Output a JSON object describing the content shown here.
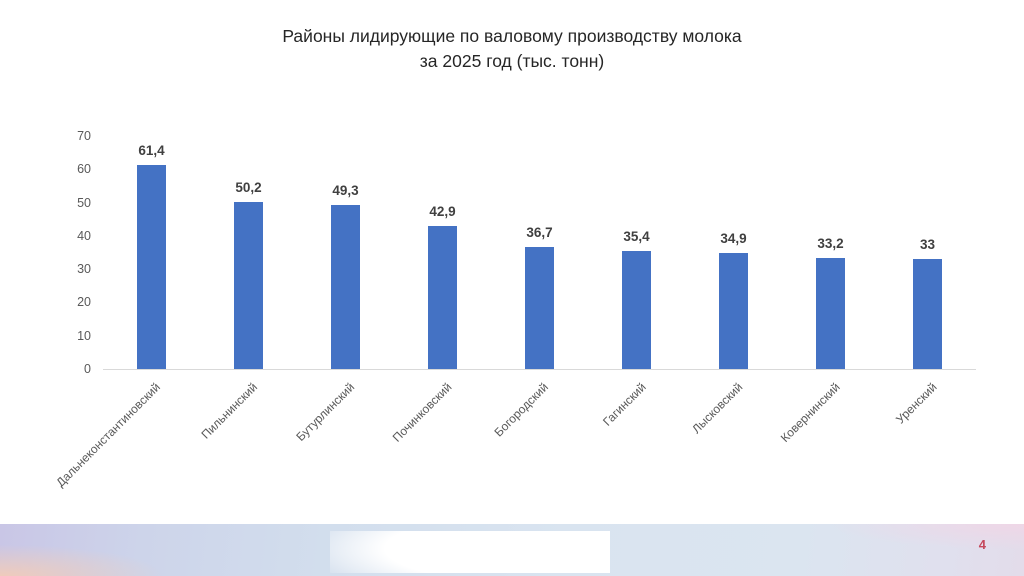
{
  "title": {
    "line1": "Районы лидирующие по валовому производству молока",
    "line2": "за 2025 год (тыс. тонн)"
  },
  "page_number": "4",
  "colors": {
    "bar": "#4472C4",
    "data_label": "#404040",
    "axis_label": "#595959",
    "page_number": "#C5485C"
  },
  "chart_data": {
    "type": "bar",
    "title": "Районы лидирующие по валовому производству молока за 2025 год (тыс. тонн)",
    "categories": [
      "Дальнеконстантиновский",
      "Пильнинский",
      "Бутурлинский",
      "Починковский",
      "Богородский",
      "Гагинский",
      "Лысковский",
      "Ковернинский",
      "Уренский"
    ],
    "values": [
      61.4,
      50.2,
      49.3,
      42.9,
      36.7,
      35.4,
      34.9,
      33.2,
      33
    ],
    "value_labels": [
      "61,4",
      "50,2",
      "49,3",
      "42,9",
      "36,7",
      "35,4",
      "34,9",
      "33,2",
      "33"
    ],
    "xlabel": "",
    "ylabel": "",
    "ylim": [
      0,
      70
    ],
    "yticks": [
      0,
      10,
      20,
      30,
      40,
      50,
      60,
      70
    ],
    "grid": false,
    "legend": false,
    "bar_color": "#4472C4",
    "data_labels_shown": true,
    "category_label_rotation_deg": 45
  }
}
